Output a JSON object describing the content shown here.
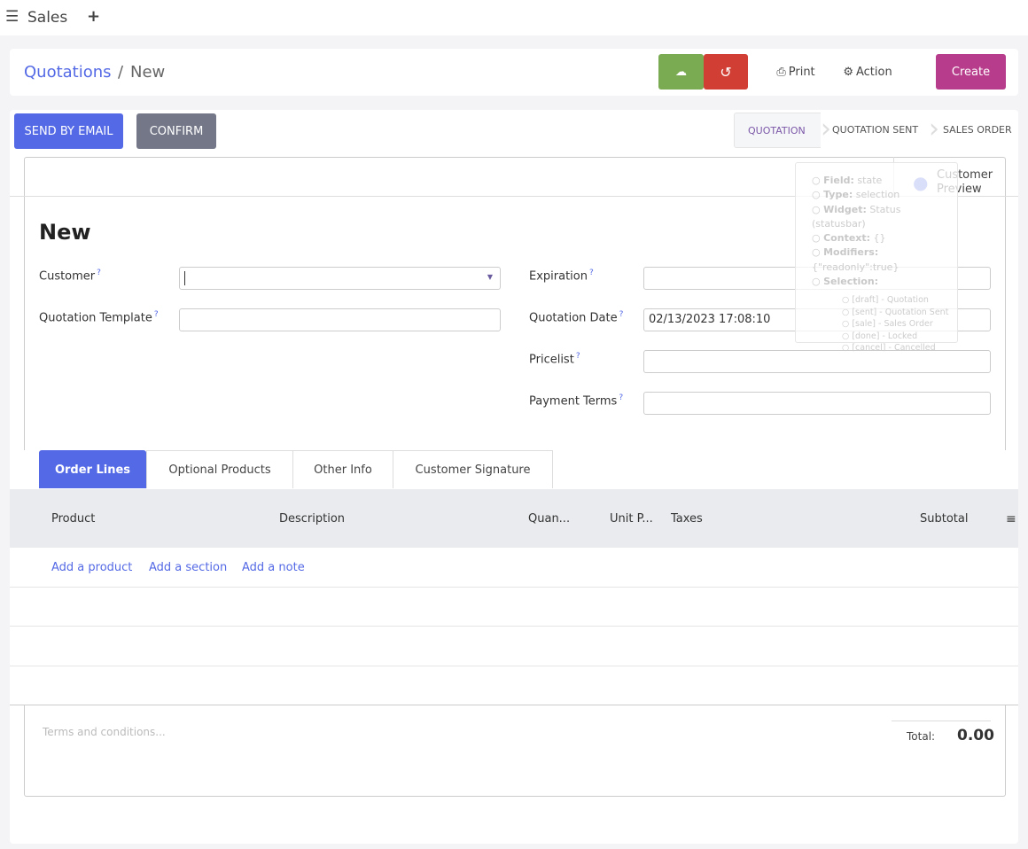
{
  "topbar": {
    "app": "Sales",
    "menu_icon": "hamburger-icon",
    "add_icon": "plus-icon"
  },
  "breadcrumb": {
    "parent": "Quotations",
    "separator": "/",
    "current": "New"
  },
  "toolbar": {
    "save_icon": "cloud-upload-icon",
    "discard_icon": "undo-icon",
    "print": "Print",
    "action": "Action",
    "create": "Create"
  },
  "colors": {
    "accent": "#5469e5",
    "save": "#7aab52",
    "discard": "#d13f34",
    "create": "#b83c8c",
    "confirm": "#737788"
  },
  "header": {
    "send_email": "SEND BY EMAIL",
    "confirm": "CONFIRM",
    "statusbar": [
      "QUOTATION",
      "QUOTATION SENT",
      "SALES ORDER"
    ],
    "active_status": "QUOTATION"
  },
  "preview": {
    "line1": "Customer",
    "line2": "Preview",
    "icon": "globe-icon"
  },
  "tooltip": {
    "items": [
      {
        "k": "Field:",
        "v": "state"
      },
      {
        "k": "Type:",
        "v": "selection"
      },
      {
        "k": "Widget:",
        "v": "Status (statusbar)"
      },
      {
        "k": "Context:",
        "v": "{}"
      },
      {
        "k": "Modifiers:",
        "v": "{\"readonly\":true}"
      },
      {
        "k": "Selection:",
        "v": ""
      }
    ],
    "selection": [
      "[draft] - Quotation",
      "[sent] - Quotation Sent",
      "[sale] - Sales Order",
      "[done] - Locked",
      "[cancel] - Cancelled"
    ]
  },
  "form": {
    "title": "New",
    "help": "?",
    "customer": {
      "label": "Customer",
      "value": ""
    },
    "template": {
      "label": "Quotation Template",
      "value": ""
    },
    "expiration": {
      "label": "Expiration",
      "value": ""
    },
    "date": {
      "label": "Quotation Date",
      "value": "02/13/2023 17:08:10"
    },
    "pricelist": {
      "label": "Pricelist",
      "value": ""
    },
    "terms": {
      "label": "Payment Terms",
      "value": ""
    }
  },
  "tabs": [
    "Order Lines",
    "Optional Products",
    "Other Info",
    "Customer Signature"
  ],
  "table": {
    "headers": [
      "Product",
      "Description",
      "Quan...",
      "Unit P...",
      "Taxes",
      "Subtotal"
    ],
    "add_product": "Add a product",
    "add_section": "Add a section",
    "add_note": "Add a note",
    "settings_icon": "sliders-icon"
  },
  "footer": {
    "terms_placeholder": "Terms and conditions...",
    "total_label": "Total:",
    "total": "0.00"
  }
}
